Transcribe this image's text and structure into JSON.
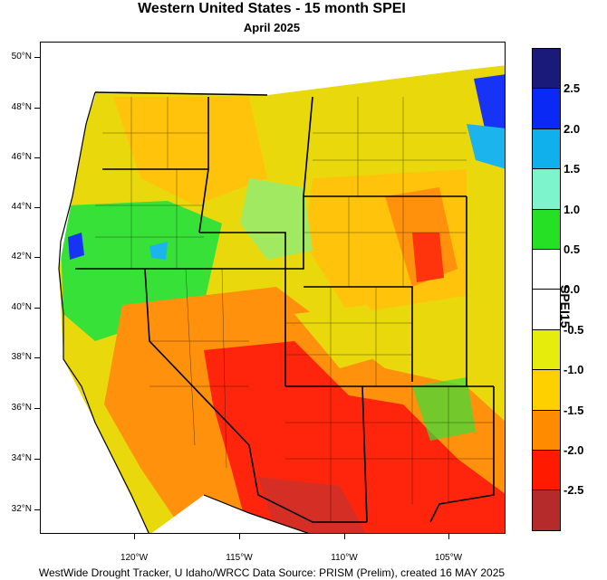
{
  "title": "Western United States - 15 month SPEI",
  "subtitle": "April 2025",
  "footer": "WestWide Drought Tracker, U Idaho/WRCC Data Source: PRISM (Prelim), created 16 MAY 2025",
  "lat_labels": [
    "50°N",
    "48°N",
    "46°N",
    "44°N",
    "42°N",
    "40°N",
    "38°N",
    "36°N",
    "34°N",
    "32°N"
  ],
  "lon_labels": [
    "120°W",
    "115°W",
    "110°W",
    "105°W"
  ],
  "colorbar": {
    "title": "SPEI15",
    "labels": [
      "2.5",
      "2.0",
      "1.5",
      "1.0",
      "0.5",
      "0.0",
      "-0.5",
      "-1.0",
      "-1.5",
      "-2.0",
      "-2.5"
    ],
    "colors": [
      "#1a1a7a",
      "#0b29f5",
      "#10b0ec",
      "#7ef4cc",
      "#25e025",
      "#ffffff",
      "#ffffff",
      "#e6ec0c",
      "#ffd000",
      "#ff8c00",
      "#ff1a00",
      "#b52a2a"
    ]
  },
  "map": {
    "region": "Western United States",
    "variable": "15 month SPEI",
    "period": "April 2025"
  }
}
